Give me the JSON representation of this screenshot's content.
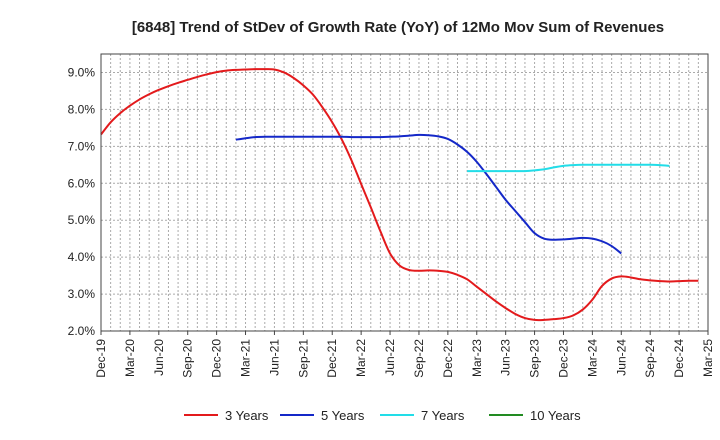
{
  "chart_data": {
    "type": "line",
    "title": "[6848]  Trend of StDev of Growth Rate (YoY) of 12Mo Mov Sum of Revenues",
    "xlabel": "",
    "ylabel": "",
    "ylim": [
      2.0,
      9.5
    ],
    "yticks": [
      2.0,
      3.0,
      4.0,
      5.0,
      6.0,
      7.0,
      8.0,
      9.0
    ],
    "ytick_labels": [
      "2.0%",
      "3.0%",
      "4.0%",
      "5.0%",
      "6.0%",
      "7.0%",
      "8.0%",
      "9.0%"
    ],
    "x_start": "Dec-19",
    "x_months": 63,
    "xtick_labels": [
      "Dec-19",
      "Mar-20",
      "Jun-20",
      "Sep-20",
      "Dec-20",
      "Mar-21",
      "Jun-21",
      "Sep-21",
      "Dec-21",
      "Mar-22",
      "Jun-22",
      "Sep-22",
      "Dec-22",
      "Mar-23",
      "Jun-23",
      "Sep-23",
      "Dec-23",
      "Mar-24",
      "Jun-24",
      "Sep-24",
      "Dec-24",
      "Mar-25"
    ],
    "grid": true,
    "legend_position": "bottom",
    "series": [
      {
        "name": "3 Years",
        "color": "#e31a1c",
        "start_index": 0,
        "values": [
          7.32,
          7.65,
          7.9,
          8.1,
          8.27,
          8.41,
          8.53,
          8.63,
          8.72,
          8.8,
          8.88,
          8.95,
          9.01,
          9.05,
          9.07,
          9.08,
          9.09,
          9.09,
          9.08,
          9.0,
          8.85,
          8.65,
          8.4,
          8.05,
          7.65,
          7.18,
          6.62,
          5.98,
          5.35,
          4.7,
          4.1,
          3.77,
          3.65,
          3.63,
          3.64,
          3.63,
          3.6,
          3.52,
          3.4,
          3.2,
          3.0,
          2.8,
          2.62,
          2.46,
          2.35,
          2.3,
          2.3,
          2.32,
          2.35,
          2.42,
          2.58,
          2.85,
          3.22,
          3.42,
          3.48,
          3.45,
          3.4,
          3.37,
          3.35,
          3.34,
          3.35,
          3.36,
          3.36
        ]
      },
      {
        "name": "5 Years",
        "color": "#1428c8",
        "start_index": 14,
        "values": [
          7.18,
          7.22,
          7.25,
          7.26,
          7.26,
          7.26,
          7.26,
          7.26,
          7.26,
          7.26,
          7.26,
          7.26,
          7.25,
          7.25,
          7.25,
          7.25,
          7.26,
          7.27,
          7.29,
          7.31,
          7.3,
          7.27,
          7.2,
          7.05,
          6.85,
          6.58,
          6.25,
          5.9,
          5.55,
          5.25,
          4.95,
          4.65,
          4.5,
          4.47,
          4.48,
          4.5,
          4.52,
          4.5,
          4.43,
          4.3,
          4.1
        ]
      },
      {
        "name": "7 Years",
        "color": "#22dde8",
        "start_index": 38,
        "values": [
          6.33,
          6.33,
          6.33,
          6.33,
          6.33,
          6.33,
          6.33,
          6.35,
          6.38,
          6.43,
          6.47,
          6.49,
          6.5,
          6.5,
          6.5,
          6.5,
          6.5,
          6.5,
          6.5,
          6.5,
          6.49,
          6.47
        ]
      },
      {
        "name": "10 Years",
        "color": "#228b22",
        "start_index": 0,
        "values": []
      }
    ]
  }
}
